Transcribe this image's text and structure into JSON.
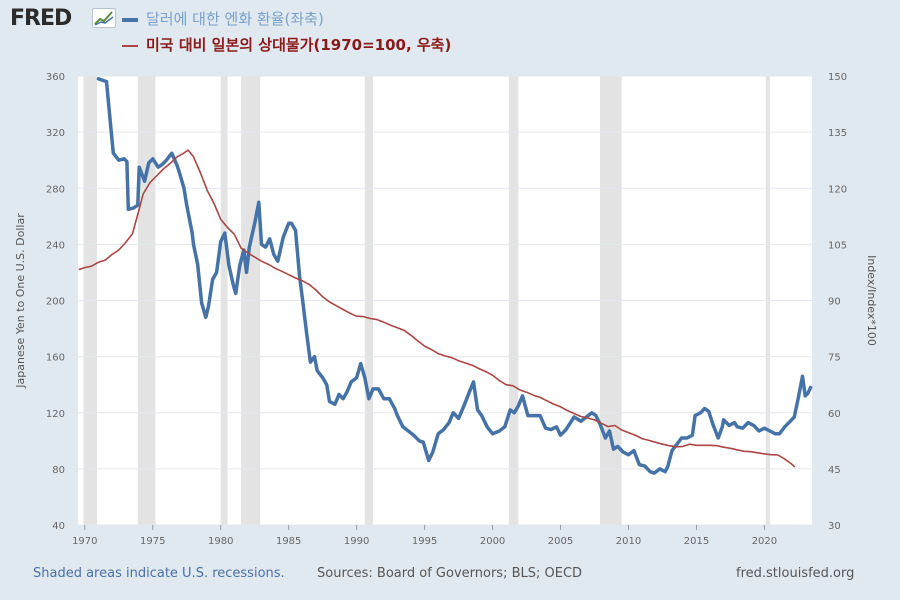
{
  "logo": {
    "text": "FRED",
    "icon": "chart-line-icon"
  },
  "footer": {
    "recessions_note": "Shaded areas indicate U.S. recessions.",
    "sources": "Sources: Board of Governors; BLS; OECD",
    "site": "fred.stlouisfed.org"
  },
  "colors": {
    "background": "#e1e9f0",
    "plot_bg": "#ffffff",
    "grid": "#e3e8ee",
    "recession": "#e3e3e3",
    "series_yen": "#4572a7",
    "series_price": "#aa4643"
  },
  "chart_data": {
    "type": "line",
    "title": "",
    "x_range": [
      1969.5,
      2023.5
    ],
    "x_ticks": [
      {
        "v": 1970,
        "label": "1970"
      },
      {
        "v": 1975,
        "label": "1975"
      },
      {
        "v": 1980,
        "label": "1980"
      },
      {
        "v": 1985,
        "label": "1985"
      },
      {
        "v": 1990,
        "label": "1990"
      },
      {
        "v": 1995,
        "label": "1995"
      },
      {
        "v": 2000,
        "label": "2000"
      },
      {
        "v": 2005,
        "label": "2005"
      },
      {
        "v": 2010,
        "label": "2010"
      },
      {
        "v": 2015,
        "label": "2015"
      },
      {
        "v": 2020,
        "label": "2020"
      }
    ],
    "y_left": {
      "label": "Japanese Yen to One U.S. Dollar",
      "range": [
        40,
        360
      ],
      "ticks": [
        {
          "v": 40,
          "label": "40"
        },
        {
          "v": 80,
          "label": "80"
        },
        {
          "v": 120,
          "label": "120"
        },
        {
          "v": 160,
          "label": "160"
        },
        {
          "v": 200,
          "label": "200"
        },
        {
          "v": 240,
          "label": "240"
        },
        {
          "v": 280,
          "label": "280"
        },
        {
          "v": 320,
          "label": "320"
        },
        {
          "v": 360,
          "label": "360"
        }
      ]
    },
    "y_right": {
      "label": "Index/Index*100",
      "range": [
        30,
        150
      ],
      "ticks": [
        {
          "v": 30,
          "label": "30"
        },
        {
          "v": 45,
          "label": "45"
        },
        {
          "v": 60,
          "label": "60"
        },
        {
          "v": 75,
          "label": "75"
        },
        {
          "v": 90,
          "label": "90"
        },
        {
          "v": 105,
          "label": "105"
        },
        {
          "v": 120,
          "label": "120"
        },
        {
          "v": 135,
          "label": "135"
        },
        {
          "v": 150,
          "label": "150"
        }
      ]
    },
    "recessions": [
      [
        1969.9,
        1970.9
      ],
      [
        1973.9,
        1975.2
      ],
      [
        1980.0,
        1980.5
      ],
      [
        1981.5,
        1982.9
      ],
      [
        1990.6,
        1991.2
      ],
      [
        2001.2,
        2001.9
      ],
      [
        2007.9,
        2009.5
      ],
      [
        2020.1,
        2020.4
      ]
    ],
    "series": [
      {
        "name": "달러에 대한 엔화 환율(좌축)",
        "axis": "left",
        "points": [
          [
            1971.0,
            358
          ],
          [
            1971.6,
            356
          ],
          [
            1971.9,
            325
          ],
          [
            1972.1,
            305
          ],
          [
            1972.5,
            300
          ],
          [
            1972.9,
            301
          ],
          [
            1973.1,
            299
          ],
          [
            1973.2,
            265
          ],
          [
            1973.6,
            266
          ],
          [
            1973.9,
            268
          ],
          [
            1974.0,
            295
          ],
          [
            1974.4,
            285
          ],
          [
            1974.7,
            298
          ],
          [
            1975.0,
            301
          ],
          [
            1975.4,
            295
          ],
          [
            1975.7,
            297
          ],
          [
            1976.0,
            300
          ],
          [
            1976.4,
            305
          ],
          [
            1976.8,
            296
          ],
          [
            1977.0,
            290
          ],
          [
            1977.3,
            280
          ],
          [
            1977.5,
            268
          ],
          [
            1977.9,
            248
          ],
          [
            1978.0,
            240
          ],
          [
            1978.3,
            226
          ],
          [
            1978.6,
            198
          ],
          [
            1978.9,
            188
          ],
          [
            1979.1,
            196
          ],
          [
            1979.4,
            215
          ],
          [
            1979.7,
            220
          ],
          [
            1980.0,
            242
          ],
          [
            1980.3,
            248
          ],
          [
            1980.6,
            225
          ],
          [
            1980.9,
            212
          ],
          [
            1981.1,
            205
          ],
          [
            1981.4,
            225
          ],
          [
            1981.7,
            236
          ],
          [
            1981.9,
            220
          ],
          [
            1982.1,
            238
          ],
          [
            1982.5,
            255
          ],
          [
            1982.8,
            270
          ],
          [
            1983.0,
            240
          ],
          [
            1983.3,
            238
          ],
          [
            1983.6,
            244
          ],
          [
            1983.9,
            233
          ],
          [
            1984.2,
            228
          ],
          [
            1984.6,
            245
          ],
          [
            1985.0,
            255
          ],
          [
            1985.2,
            255
          ],
          [
            1985.5,
            250
          ],
          [
            1985.8,
            217
          ],
          [
            1986.0,
            202
          ],
          [
            1986.3,
            178
          ],
          [
            1986.6,
            156
          ],
          [
            1986.9,
            160
          ],
          [
            1987.1,
            150
          ],
          [
            1987.5,
            145
          ],
          [
            1987.8,
            140
          ],
          [
            1988.0,
            128
          ],
          [
            1988.4,
            126
          ],
          [
            1988.7,
            133
          ],
          [
            1989.0,
            130
          ],
          [
            1989.3,
            135
          ],
          [
            1989.6,
            142
          ],
          [
            1990.0,
            145
          ],
          [
            1990.3,
            155
          ],
          [
            1990.6,
            145
          ],
          [
            1990.9,
            130
          ],
          [
            1991.2,
            137
          ],
          [
            1991.6,
            137
          ],
          [
            1992.0,
            130
          ],
          [
            1992.4,
            130
          ],
          [
            1992.8,
            123
          ],
          [
            1993.0,
            118
          ],
          [
            1993.4,
            110
          ],
          [
            1993.8,
            107
          ],
          [
            1994.2,
            104
          ],
          [
            1994.6,
            100
          ],
          [
            1994.9,
            99
          ],
          [
            1995.3,
            86
          ],
          [
            1995.6,
            92
          ],
          [
            1996.0,
            105
          ],
          [
            1996.4,
            108
          ],
          [
            1996.8,
            113
          ],
          [
            1997.1,
            120
          ],
          [
            1997.5,
            116
          ],
          [
            1997.9,
            125
          ],
          [
            1998.3,
            135
          ],
          [
            1998.6,
            142
          ],
          [
            1998.9,
            122
          ],
          [
            1999.2,
            118
          ],
          [
            1999.6,
            110
          ],
          [
            2000.0,
            105
          ],
          [
            2000.5,
            107
          ],
          [
            2000.9,
            110
          ],
          [
            2001.3,
            122
          ],
          [
            2001.6,
            120
          ],
          [
            2001.9,
            125
          ],
          [
            2002.2,
            132
          ],
          [
            2002.6,
            118
          ],
          [
            2003.0,
            118
          ],
          [
            2003.5,
            118
          ],
          [
            2003.9,
            109
          ],
          [
            2004.3,
            108
          ],
          [
            2004.7,
            110
          ],
          [
            2005.0,
            104
          ],
          [
            2005.4,
            108
          ],
          [
            2005.8,
            114
          ],
          [
            2006.0,
            117
          ],
          [
            2006.5,
            114
          ],
          [
            2006.9,
            117
          ],
          [
            2007.3,
            120
          ],
          [
            2007.6,
            118
          ],
          [
            2007.9,
            112
          ],
          [
            2008.3,
            102
          ],
          [
            2008.6,
            107
          ],
          [
            2008.9,
            94
          ],
          [
            2009.2,
            96
          ],
          [
            2009.6,
            92
          ],
          [
            2010.0,
            90
          ],
          [
            2010.4,
            93
          ],
          [
            2010.8,
            83
          ],
          [
            2011.2,
            82
          ],
          [
            2011.6,
            78
          ],
          [
            2011.9,
            77
          ],
          [
            2012.3,
            80
          ],
          [
            2012.7,
            78
          ],
          [
            2012.9,
            82
          ],
          [
            2013.2,
            93
          ],
          [
            2013.6,
            98
          ],
          [
            2013.9,
            102
          ],
          [
            2014.3,
            102
          ],
          [
            2014.7,
            104
          ],
          [
            2014.9,
            118
          ],
          [
            2015.3,
            120
          ],
          [
            2015.6,
            123
          ],
          [
            2015.9,
            121
          ],
          [
            2016.2,
            112
          ],
          [
            2016.6,
            102
          ],
          [
            2016.9,
            110
          ],
          [
            2017.0,
            115
          ],
          [
            2017.4,
            111
          ],
          [
            2017.8,
            113
          ],
          [
            2018.0,
            110
          ],
          [
            2018.4,
            109
          ],
          [
            2018.8,
            113
          ],
          [
            2019.2,
            111
          ],
          [
            2019.6,
            107
          ],
          [
            2020.0,
            109
          ],
          [
            2020.4,
            107
          ],
          [
            2020.8,
            105
          ],
          [
            2021.1,
            105
          ],
          [
            2021.5,
            110
          ],
          [
            2021.9,
            114
          ],
          [
            2022.2,
            117
          ],
          [
            2022.5,
            131
          ],
          [
            2022.8,
            146
          ],
          [
            2023.0,
            132
          ],
          [
            2023.2,
            134
          ],
          [
            2023.4,
            138
          ]
        ]
      },
      {
        "name": "미국 대비 일본의 상대물가(1970=100, 우축)",
        "axis": "right",
        "points": [
          [
            1969.6,
            98.3
          ],
          [
            1970.0,
            98.8
          ],
          [
            1970.5,
            99.2
          ],
          [
            1971.0,
            100.2
          ],
          [
            1971.5,
            100.8
          ],
          [
            1972.0,
            102.3
          ],
          [
            1972.5,
            103.5
          ],
          [
            1973.0,
            105.5
          ],
          [
            1973.5,
            107.8
          ],
          [
            1973.9,
            113.0
          ],
          [
            1974.3,
            118.5
          ],
          [
            1974.8,
            121.5
          ],
          [
            1975.2,
            123.0
          ],
          [
            1975.8,
            125.2
          ],
          [
            1976.3,
            126.7
          ],
          [
            1976.8,
            128.4
          ],
          [
            1977.2,
            129.2
          ],
          [
            1977.6,
            130.2
          ],
          [
            1978.0,
            128.4
          ],
          [
            1978.5,
            124.2
          ],
          [
            1979.0,
            119.5
          ],
          [
            1979.5,
            116.0
          ],
          [
            1980.0,
            111.7
          ],
          [
            1980.5,
            109.5
          ],
          [
            1981.0,
            107.7
          ],
          [
            1981.5,
            104.0
          ],
          [
            1982.0,
            102.7
          ],
          [
            1982.5,
            101.6
          ],
          [
            1983.0,
            100.5
          ],
          [
            1983.6,
            99.5
          ],
          [
            1984.0,
            98.6
          ],
          [
            1984.5,
            97.8
          ],
          [
            1985.0,
            96.9
          ],
          [
            1985.5,
            96.0
          ],
          [
            1986.0,
            95.3
          ],
          [
            1986.5,
            94.3
          ],
          [
            1987.0,
            92.8
          ],
          [
            1987.5,
            91.0
          ],
          [
            1988.0,
            89.6
          ],
          [
            1988.5,
            88.6
          ],
          [
            1989.0,
            87.6
          ],
          [
            1989.5,
            86.6
          ],
          [
            1990.0,
            85.8
          ],
          [
            1990.5,
            85.7
          ],
          [
            1991.0,
            85.2
          ],
          [
            1991.5,
            84.9
          ],
          [
            1992.0,
            84.2
          ],
          [
            1992.5,
            83.4
          ],
          [
            1993.0,
            82.7
          ],
          [
            1993.5,
            82.0
          ],
          [
            1994.0,
            80.7
          ],
          [
            1994.5,
            79.2
          ],
          [
            1995.0,
            77.8
          ],
          [
            1995.5,
            76.9
          ],
          [
            1996.0,
            75.8
          ],
          [
            1996.5,
            75.2
          ],
          [
            1997.0,
            74.7
          ],
          [
            1997.5,
            73.9
          ],
          [
            1998.0,
            73.3
          ],
          [
            1998.5,
            72.7
          ],
          [
            1999.0,
            71.8
          ],
          [
            1999.5,
            71.0
          ],
          [
            2000.0,
            70.0
          ],
          [
            2000.5,
            68.6
          ],
          [
            2001.0,
            67.5
          ],
          [
            2001.5,
            67.2
          ],
          [
            2002.0,
            66.1
          ],
          [
            2002.5,
            65.5
          ],
          [
            2003.0,
            64.7
          ],
          [
            2003.5,
            64.1
          ],
          [
            2004.0,
            63.2
          ],
          [
            2004.5,
            62.3
          ],
          [
            2005.0,
            61.6
          ],
          [
            2005.5,
            60.6
          ],
          [
            2006.0,
            59.8
          ],
          [
            2006.5,
            59.0
          ],
          [
            2007.0,
            58.6
          ],
          [
            2007.5,
            58.1
          ],
          [
            2008.0,
            57.2
          ],
          [
            2008.5,
            56.3
          ],
          [
            2009.0,
            56.6
          ],
          [
            2009.5,
            55.4
          ],
          [
            2010.0,
            54.7
          ],
          [
            2010.5,
            54.0
          ],
          [
            2011.0,
            53.1
          ],
          [
            2011.5,
            52.6
          ],
          [
            2012.0,
            52.1
          ],
          [
            2012.5,
            51.6
          ],
          [
            2013.0,
            51.2
          ],
          [
            2013.5,
            50.9
          ],
          [
            2014.0,
            51.0
          ],
          [
            2014.5,
            51.6
          ],
          [
            2015.0,
            51.3
          ],
          [
            2015.5,
            51.3
          ],
          [
            2016.0,
            51.3
          ],
          [
            2016.5,
            51.2
          ],
          [
            2017.0,
            50.8
          ],
          [
            2017.5,
            50.5
          ],
          [
            2018.0,
            50.1
          ],
          [
            2018.5,
            49.7
          ],
          [
            2019.0,
            49.6
          ],
          [
            2019.5,
            49.3
          ],
          [
            2020.0,
            49.0
          ],
          [
            2020.5,
            48.8
          ],
          [
            2021.0,
            48.7
          ],
          [
            2021.5,
            47.6
          ],
          [
            2022.0,
            46.3
          ],
          [
            2022.2,
            45.6
          ]
        ]
      }
    ]
  }
}
